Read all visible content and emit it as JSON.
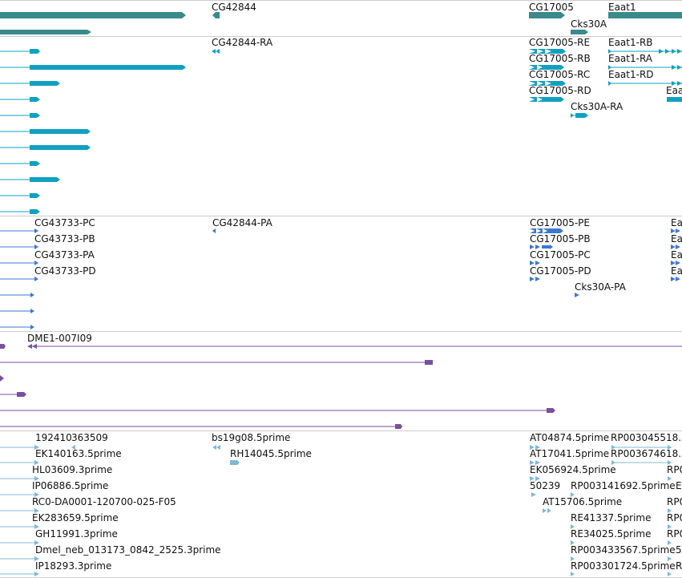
{
  "colors": {
    "gene": "#3a8a8a",
    "transcript": "#12a0c0",
    "protein": "#3b78d0",
    "clone": "#7a4fa0",
    "est": "#7fb8d8",
    "divider": "#cccccc"
  },
  "tracks": {
    "gene": {
      "labels": [
        "CG42844",
        "CG17005",
        "Eaat1",
        "Cks30A"
      ]
    },
    "transcript": {
      "labels": [
        "CG42844-RA",
        "CG17005-RE",
        "Eaat1-RB",
        "CG17005-RB",
        "Eaat1-RA",
        "CG17005-RC",
        "Eaat1-RD",
        "CG17005-RD",
        "Eaa",
        "Cks30A-RA"
      ]
    },
    "protein": {
      "labels": [
        "CG43733-PC",
        "CG42844-PA",
        "CG17005-PE",
        "Ea",
        "CG43733-PB",
        "CG17005-PB",
        "Ea",
        "CG43733-PA",
        "CG17005-PC",
        "Ea",
        "CG43733-PD",
        "CG17005-PD",
        "Ea",
        "Cks30A-PA"
      ]
    },
    "clone": {
      "labels": [
        "DME1-007I09"
      ]
    },
    "est": {
      "labels": [
        "192410",
        "363509",
        "bs19g08.5prime",
        "AT04874.5prime",
        "RP003045518.",
        "EK140163.5prime",
        "RH14045.5prime",
        "AT17041.5prime",
        "RP003674618.",
        "HL03609.3prime",
        "EK056924.5prime",
        "RP0",
        "IP06886.5prime",
        "50239",
        "RP003141692.5prime",
        "E",
        "RC0-DA0001-120700-025-F05",
        "AT15706.5prime",
        "RP0",
        "EK283659.5prime",
        "RE41337.5prime",
        "RP0",
        "GH11991.3prime",
        "RE34025.5prime",
        "RP0",
        "Dmel_neb_013173_0842_2525.3prime",
        "RP003433567.5prime",
        "5",
        "IP18293.3prime",
        "RP003301724.5prime",
        "R"
      ]
    }
  }
}
